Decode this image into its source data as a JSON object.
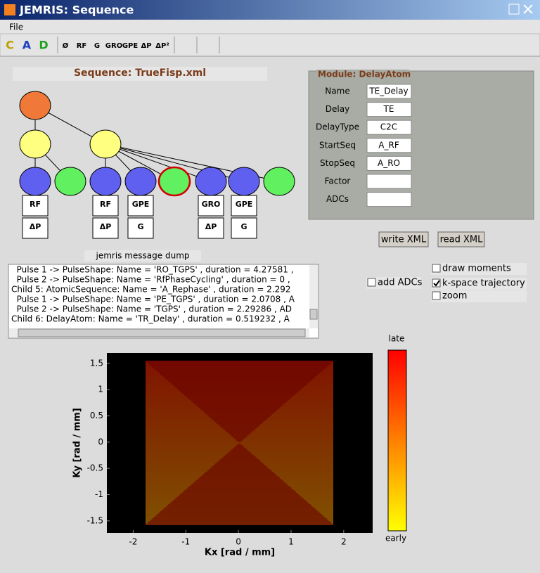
{
  "window": {
    "title": "JEMRIS: Sequence"
  },
  "menu": [
    "File"
  ],
  "toolbar": [
    "C",
    "A",
    "D",
    "Ø",
    "RF",
    "G",
    "GRO",
    "GPE",
    "ΔP",
    "ΔP²"
  ],
  "sequence": {
    "title": "Sequence: TrueFisp.xml",
    "modules": [
      [
        "RF",
        "ΔP"
      ],
      [
        "RF",
        "ΔP"
      ],
      [
        "GPE",
        "G"
      ],
      [
        "GRO",
        "ΔP"
      ],
      [
        "GPE",
        "G"
      ]
    ]
  },
  "module": {
    "title": "Module: DelayAtom",
    "fields": [
      {
        "label": "Name",
        "value": "TE_Delay"
      },
      {
        "label": "Delay",
        "value": "TE"
      },
      {
        "label": "DelayType",
        "value": "C2C"
      },
      {
        "label": "StartSeq",
        "value": "A_RF"
      },
      {
        "label": "StopSeq",
        "value": "A_RO"
      },
      {
        "label": "Factor",
        "value": ""
      },
      {
        "label": "ADCs",
        "value": ""
      }
    ]
  },
  "buttons": [
    "write XML",
    "read XML"
  ],
  "dump": {
    "title": "jemris message dump",
    "lines": [
      "  Pulse 1 -> PulseShape: Name = 'RO_TGPS' , duration = 4.27581 ,",
      "  Pulse 2 -> PulseShape: Name = 'RfPhaseCycling' , duration = 0 ,",
      "Child 5: AtomicSequence: Name = 'A_Rephase' , duration = 2.292",
      "  Pulse 1 -> PulseShape: Name = 'PE_TGPS' , duration = 2.0708 , A",
      "  Pulse 2 -> PulseShape: Name = 'TGPS' , duration = 2.29286 , AD",
      "Child 6: DelayAtom: Name = 'TR_Delay' , duration = 0.519232 , A"
    ]
  },
  "checkboxes": [
    {
      "label": "add ADCs",
      "checked": false
    },
    {
      "label": "draw moments",
      "checked": false
    },
    {
      "label": "k-space trajectory",
      "checked": true
    },
    {
      "label": "zoom",
      "checked": false
    }
  ],
  "chart_data": {
    "type": "trajectory",
    "xlabel": "Kx [rad / mm]",
    "ylabel": "Ky [rad / mm]",
    "xlim": [
      -2.5,
      2.55
    ],
    "ylim": [
      -1.73,
      1.7
    ],
    "xticks": [
      -2,
      -1,
      0,
      1,
      2
    ],
    "yticks": [
      -1.5,
      -1,
      -0.5,
      0,
      0.5,
      1,
      1.5
    ],
    "colorbar": {
      "top": "late",
      "bottom": "early"
    }
  }
}
